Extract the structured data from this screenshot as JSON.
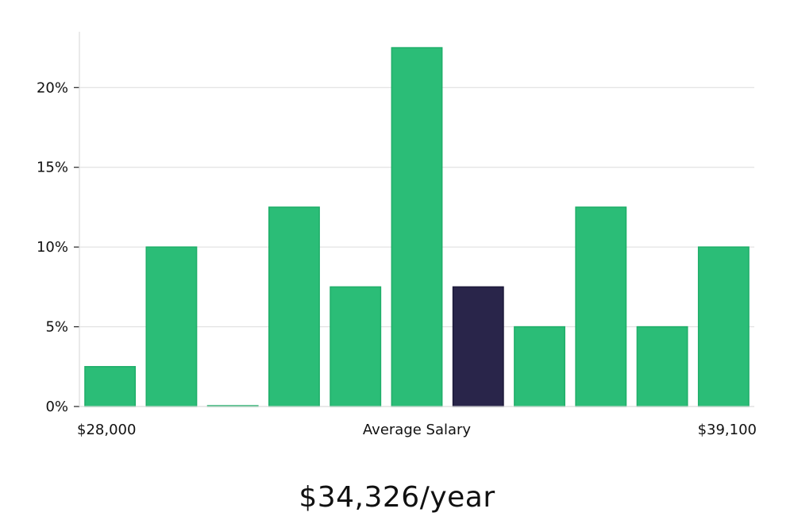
{
  "chart_data": {
    "type": "bar",
    "title": "",
    "xlabel": "Average Salary",
    "ylabel": "",
    "x_min_label": "$28,000",
    "x_max_label": "$39,100",
    "ylim": [
      0,
      23.5
    ],
    "yticks": [
      {
        "value": 0,
        "label": "0%"
      },
      {
        "value": 5,
        "label": "5%"
      },
      {
        "value": 10,
        "label": "10%"
      },
      {
        "value": 15,
        "label": "15%"
      },
      {
        "value": 20,
        "label": "20%"
      }
    ],
    "values": [
      2.5,
      10,
      0.05,
      12.5,
      7.5,
      22.5,
      7.5,
      5,
      12.5,
      5,
      10
    ],
    "highlight_index": 6,
    "colors": {
      "bar": "#2bbd77",
      "bar_border": "#1fae69",
      "highlight": "#29254a",
      "highlight_border": "#1b1838"
    },
    "grid": true
  },
  "salary": {
    "caption": "$34,326/year"
  }
}
